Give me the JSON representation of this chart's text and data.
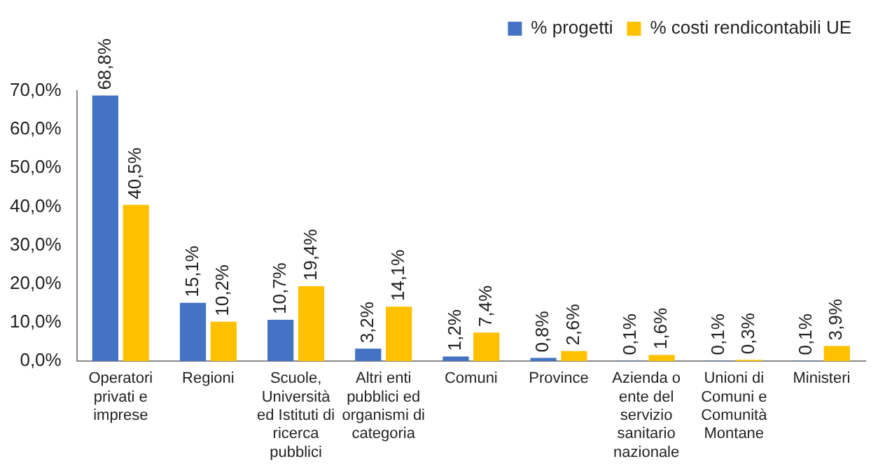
{
  "chart_data": {
    "type": "bar",
    "categories": [
      "Operatori privati e imprese",
      "Regioni",
      "Scuole, Università ed Istituti di ricerca pubblici",
      "Altri enti pubblici ed organismi di categoria",
      "Comuni",
      "Province",
      "Azienda o ente del servizio sanitario nazionale",
      "Unioni di Comuni e Comunità Montane",
      "Ministeri"
    ],
    "series": [
      {
        "name": "% progetti",
        "color": "#4472c4",
        "values": [
          68.8,
          15.1,
          10.7,
          3.2,
          1.2,
          0.8,
          0.1,
          0.1,
          0.1
        ],
        "value_labels": [
          "68,8%",
          "15,1%",
          "10,7%",
          "3,2%",
          "1,2%",
          "0,8%",
          "0,1%",
          "0,1%",
          "0,1%"
        ]
      },
      {
        "name": "% costi rendicontabili UE",
        "color": "#ffc000",
        "values": [
          40.5,
          10.2,
          19.4,
          14.1,
          7.4,
          2.6,
          1.6,
          0.3,
          3.9
        ],
        "value_labels": [
          "40,5%",
          "10,2%",
          "19,4%",
          "14,1%",
          "7,4%",
          "2,6%",
          "1,6%",
          "0,3%",
          "3,9%"
        ]
      }
    ],
    "ylim": [
      0,
      70
    ],
    "yticks": [
      {
        "value": 0,
        "label": "0,0%"
      },
      {
        "value": 10,
        "label": "10,0%"
      },
      {
        "value": 20,
        "label": "20,0%"
      },
      {
        "value": 30,
        "label": "30,0%"
      },
      {
        "value": 40,
        "label": "40,0%"
      },
      {
        "value": 50,
        "label": "50,0%"
      },
      {
        "value": 60,
        "label": "60,0%"
      },
      {
        "value": 70,
        "label": "70,0%"
      }
    ],
    "grid": false,
    "legend": "top right"
  }
}
